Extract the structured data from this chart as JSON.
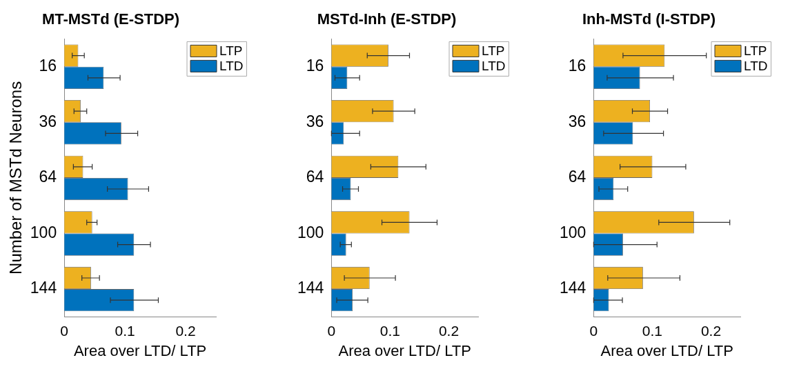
{
  "chart_data": [
    {
      "type": "bar",
      "orientation": "horizontal",
      "title": "MT-MSTd (E-STDP)",
      "xlabel": "Area over LTD/ LTP",
      "ylabel": "Number of MSTd Neurons",
      "categories": [
        "16",
        "36",
        "64",
        "100",
        "144"
      ],
      "xlim": [
        0,
        0.25
      ],
      "xticks": [
        0,
        0.1,
        0.2
      ],
      "legend": "top right",
      "series": [
        {
          "name": "LTP",
          "color": "#edb120",
          "values": [
            0.023,
            0.027,
            0.031,
            0.046,
            0.044
          ],
          "errors": [
            [
              0.013,
              0.033
            ],
            [
              0.016,
              0.037
            ],
            [
              0.015,
              0.046
            ],
            [
              0.037,
              0.054
            ],
            [
              0.029,
              0.058
            ]
          ]
        },
        {
          "name": "LTD",
          "color": "#0072bd",
          "values": [
            0.065,
            0.094,
            0.105,
            0.115,
            0.115
          ],
          "errors": [
            [
              0.039,
              0.092
            ],
            [
              0.068,
              0.121
            ],
            [
              0.071,
              0.139
            ],
            [
              0.088,
              0.142
            ],
            [
              0.076,
              0.155
            ]
          ]
        }
      ]
    },
    {
      "type": "bar",
      "orientation": "horizontal",
      "title": "MSTd-Inh (E-STDP)",
      "xlabel": "Area over LTD/ LTP",
      "categories": [
        "16",
        "36",
        "64",
        "100",
        "144"
      ],
      "xlim": [
        0,
        0.25
      ],
      "xticks": [
        0,
        0.1,
        0.2
      ],
      "legend": "top right",
      "series": [
        {
          "name": "LTP",
          "color": "#edb120",
          "values": [
            0.097,
            0.106,
            0.114,
            0.133,
            0.065
          ],
          "errors": [
            [
              0.061,
              0.133
            ],
            [
              0.07,
              0.142
            ],
            [
              0.067,
              0.161
            ],
            [
              0.086,
              0.18
            ],
            [
              0.022,
              0.109
            ]
          ]
        },
        {
          "name": "LTD",
          "color": "#0072bd",
          "values": [
            0.027,
            0.021,
            0.033,
            0.025,
            0.036
          ],
          "errors": [
            [
              0.006,
              0.048
            ],
            [
              0,
              0.048
            ],
            [
              0.019,
              0.046
            ],
            [
              0.015,
              0.034
            ],
            [
              0.009,
              0.062
            ]
          ]
        }
      ]
    },
    {
      "type": "bar",
      "orientation": "horizontal",
      "title": "Inh-MSTd (I-STDP)",
      "xlabel": "Area over LTD/ LTP",
      "categories": [
        "16",
        "36",
        "64",
        "100",
        "144"
      ],
      "xlim": [
        0,
        0.25
      ],
      "xticks": [
        0,
        0.1,
        0.2
      ],
      "legend": "top right",
      "series": [
        {
          "name": "LTP",
          "color": "#edb120",
          "values": [
            0.121,
            0.096,
            0.1,
            0.171,
            0.084
          ],
          "errors": [
            [
              0.05,
              0.192
            ],
            [
              0.066,
              0.126
            ],
            [
              0.045,
              0.157
            ],
            [
              0.111,
              0.232
            ],
            [
              0.024,
              0.147
            ]
          ]
        },
        {
          "name": "LTD",
          "color": "#0072bd",
          "values": [
            0.079,
            0.067,
            0.034,
            0.05,
            0.026
          ],
          "errors": [
            [
              0.023,
              0.136
            ],
            [
              0.017,
              0.119
            ],
            [
              0.009,
              0.058
            ],
            [
              0,
              0.108
            ],
            [
              0,
              0.049
            ]
          ]
        }
      ]
    }
  ]
}
